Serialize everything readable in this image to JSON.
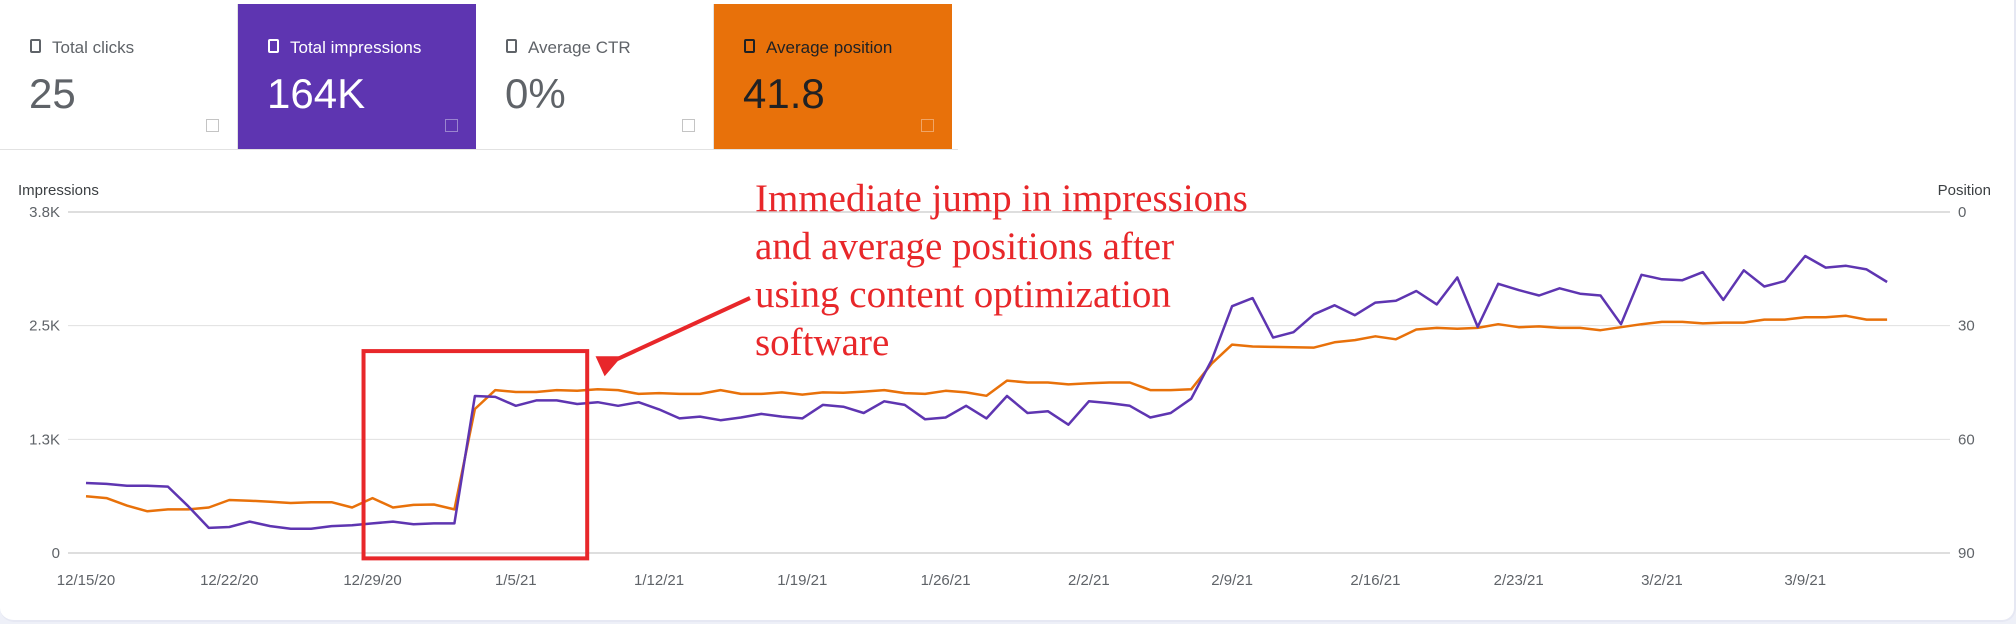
{
  "metrics": [
    {
      "label": "Total clicks",
      "value": "25"
    },
    {
      "label": "Total impressions",
      "value": "164K"
    },
    {
      "label": "Average CTR",
      "value": "0%"
    },
    {
      "label": "Average position",
      "value": "41.8"
    }
  ],
  "colors": {
    "impressions": "#5e35b1",
    "position": "#e8710a",
    "annotation": "#e8272a",
    "grid": "#e0e0e0"
  },
  "icons": {
    "checkbox": "checkbox-icon",
    "help": "help-icon"
  },
  "annotation": {
    "lines": [
      "Immediate jump in impressions",
      "and average positions after",
      "using content optimization",
      "software"
    ],
    "highlight_dates": [
      "12/29/20",
      "1/8/21"
    ]
  },
  "chart_data": {
    "type": "line",
    "ylabel_left": "Impressions",
    "ylabel_right": "Position",
    "yticks_left": [
      "0",
      "1.3K",
      "2.5K",
      "3.8K"
    ],
    "yticks_right": [
      "90",
      "60",
      "30",
      "0"
    ],
    "ylim_left": [
      0,
      3800
    ],
    "ylim_right_inverted": [
      90,
      0
    ],
    "x_start": "12/15/20",
    "x_end": "3/15/21",
    "xticks": [
      "12/15/20",
      "12/22/20",
      "12/29/20",
      "1/5/21",
      "1/12/21",
      "1/19/21",
      "1/26/21",
      "2/2/21",
      "2/9/21",
      "2/16/21",
      "2/23/21",
      "3/2/21",
      "3/9/21"
    ],
    "grid": true,
    "series": [
      {
        "name": "Impressions",
        "axis": "left",
        "values": [
          780,
          770,
          750,
          750,
          740,
          520,
          280,
          290,
          350,
          300,
          270,
          270,
          300,
          310,
          330,
          350,
          320,
          330,
          330,
          1750,
          1740,
          1640,
          1700,
          1700,
          1660,
          1680,
          1640,
          1680,
          1600,
          1500,
          1520,
          1480,
          1510,
          1550,
          1520,
          1500,
          1650,
          1630,
          1560,
          1690,
          1650,
          1490,
          1510,
          1640,
          1500,
          1750,
          1560,
          1580,
          1430,
          1690,
          1670,
          1640,
          1510,
          1560,
          1720,
          2150,
          2750,
          2840,
          2400,
          2460,
          2660,
          2760,
          2650,
          2790,
          2810,
          2920,
          2770,
          3070,
          2520,
          3000,
          2930,
          2870,
          2950,
          2890,
          2870,
          2550,
          3100,
          3050,
          3040,
          3130,
          2820,
          3150,
          2970,
          3030,
          3310,
          3180,
          3200,
          3160,
          3020
        ]
      },
      {
        "name": "Position",
        "axis": "right",
        "values": [
          75,
          75.5,
          77.5,
          79,
          78.5,
          78.5,
          78,
          76,
          76.2,
          76.5,
          76.8,
          76.6,
          76.6,
          78,
          75.5,
          78,
          77.3,
          77.2,
          78.5,
          52,
          47,
          47.5,
          47.5,
          47,
          47.2,
          46.8,
          47,
          48,
          47.8,
          48,
          48,
          47,
          48,
          48,
          47.6,
          48.2,
          47.6,
          47.7,
          47.4,
          47,
          47.8,
          48,
          47.2,
          47.6,
          48.5,
          44.5,
          45,
          45,
          45.5,
          45.2,
          45,
          45,
          47,
          47,
          46.8,
          40,
          35,
          35.5,
          35.6,
          35.7,
          35.8,
          34.4,
          33.8,
          32.8,
          33.6,
          31,
          30.6,
          30.8,
          30.6,
          29.6,
          30.4,
          30.2,
          30.6,
          30.6,
          31.2,
          30.4,
          29.6,
          29,
          29,
          29.4,
          29.2,
          29.2,
          28.4,
          28.4,
          27.8,
          27.8,
          27.4,
          28.4,
          28.4
        ]
      }
    ]
  }
}
